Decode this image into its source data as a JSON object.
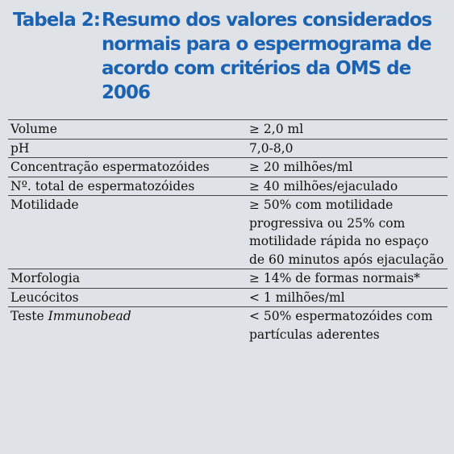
{
  "title": {
    "prefix": "Tabela 2:",
    "text": "Resumo dos valores considerados normais para o espermograma de acordo com critérios da OMS de 2006"
  },
  "table": {
    "rows": [
      {
        "parameter": "Volume",
        "value": "≥ 2,0 ml"
      },
      {
        "parameter": "pH",
        "value": "7,0-8,0"
      },
      {
        "parameter": "Concentração espermatozóides",
        "value": "≥ 20 milhões/ml"
      },
      {
        "parameter": "Nº. total de espermatozóides",
        "value": "≥ 40 milhões/ejaculado"
      },
      {
        "parameter": "Motilidade",
        "value": "≥ 50% com motilidade progressiva ou 25% com motilidade rápida no espaço de 60 minutos após ejaculação"
      },
      {
        "parameter": "Morfologia",
        "value": "≥ 14% de formas normais*"
      },
      {
        "parameter": "Leucócitos",
        "value": "< 1 milhões/ml"
      },
      {
        "parameter_plain": "Teste ",
        "parameter_italic": "Immunobead",
        "value": "< 50% espermatozóides com partículas aderentes"
      }
    ]
  }
}
